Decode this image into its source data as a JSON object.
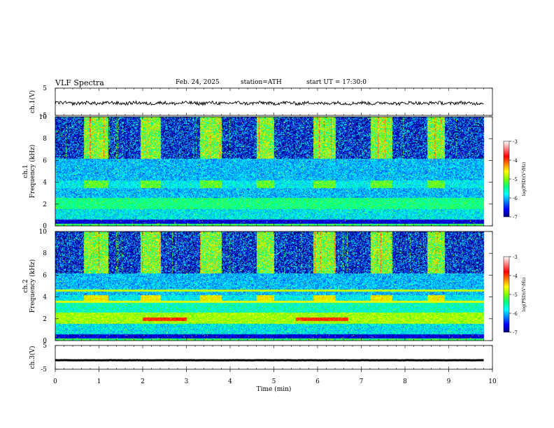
{
  "header": {
    "title": "VLF Spectra",
    "date": "Feb. 24, 2025",
    "station": "station=ATH",
    "start": "start UT = 17:30:0"
  },
  "colorbar": {
    "label": "log(PSD)(V²/Hz)",
    "ticks": [
      "-3",
      "-4",
      "-5",
      "-6",
      "-7"
    ],
    "colors": [
      "#000080",
      "#0000ff",
      "#0080ff",
      "#00ffff",
      "#00ff80",
      "#80ff00",
      "#ffff00",
      "#ff8000",
      "#ff0000",
      "#ff8080",
      "#ffffff"
    ]
  },
  "chart_data": [
    {
      "type": "line",
      "ylabel": "ch.1(V)",
      "ylim": [
        -5,
        5
      ],
      "yticks": [
        "5",
        "-5"
      ],
      "xlim": [
        0,
        10
      ],
      "baseline_value": -0.5,
      "noise_amplitude": 1.2,
      "line_color": "#000000"
    },
    {
      "type": "heatmap",
      "ylabel": "ch.1\nFrequency (kHz)",
      "ylim": [
        0,
        10
      ],
      "yticks": [
        "0",
        "2",
        "4",
        "6",
        "8",
        "10"
      ],
      "xlim": [
        0,
        10
      ],
      "data_end_min": 9.8,
      "value_range": [
        -7,
        -3
      ],
      "colorbar_label": "log(PSD)(V²/Hz)",
      "band_blocks": [
        [
          0.65,
          1.2
        ],
        [
          1.95,
          2.4
        ],
        [
          3.3,
          3.8
        ],
        [
          4.6,
          5.0
        ],
        [
          5.9,
          6.4
        ],
        [
          7.2,
          7.7
        ],
        [
          8.5,
          8.9
        ]
      ]
    },
    {
      "type": "heatmap",
      "ylabel": "ch.2\nFrequency (kHz)",
      "ylim": [
        0,
        10
      ],
      "yticks": [
        "0",
        "2",
        "4",
        "6",
        "8",
        "10"
      ],
      "xlim": [
        0,
        10
      ],
      "data_end_min": 9.8,
      "value_range": [
        -7,
        -3
      ],
      "colorbar_label": "log(PSD)(V²/Hz)",
      "band_blocks": [
        [
          0.65,
          1.2
        ],
        [
          1.95,
          2.4
        ],
        [
          3.3,
          3.8
        ],
        [
          4.6,
          5.0
        ],
        [
          5.9,
          6.4
        ],
        [
          7.2,
          7.7
        ],
        [
          8.5,
          8.9
        ]
      ],
      "hot_segments": [
        [
          2.0,
          3.0
        ],
        [
          5.5,
          6.7
        ]
      ]
    },
    {
      "type": "line",
      "ylabel": "ch.3(V)",
      "ylim": [
        -5,
        5
      ],
      "yticks": [
        "5",
        "-5"
      ],
      "xlim": [
        0,
        10
      ],
      "baseline_value": -1.2,
      "noise_amplitude": 0.1,
      "line_color": "#000000"
    }
  ],
  "xaxis": {
    "label": "Time (min)",
    "ticks": [
      "0",
      "1",
      "2",
      "3",
      "4",
      "5",
      "6",
      "7",
      "8",
      "9",
      "10"
    ]
  }
}
